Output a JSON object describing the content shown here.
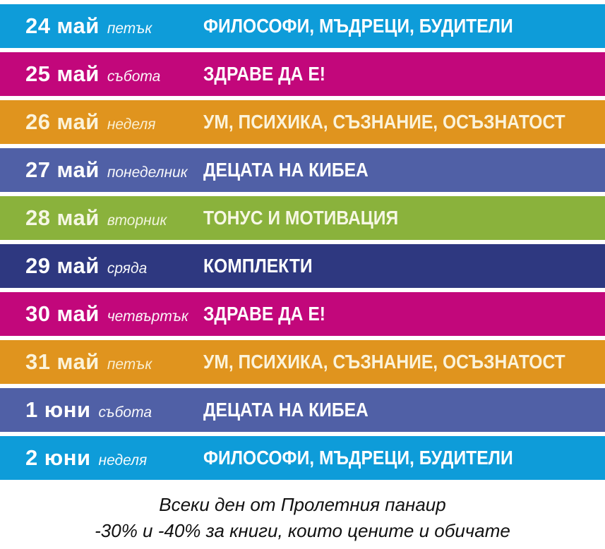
{
  "page": {
    "background_color": "#FFFFFF",
    "separator_color": "#FFFFFF"
  },
  "schedule": {
    "rows": [
      {
        "date": "24",
        "month": "май",
        "weekday": "петък",
        "topic": "ФИЛОСОФИ, МЪДРЕЦИ, БУДИТЕЛИ",
        "bg": "#0E9CD9",
        "fg": "#FFFFFF"
      },
      {
        "date": "25",
        "month": "май",
        "weekday": "събота",
        "topic": "ЗДРАВЕ ДА Е!",
        "bg": "#C2077B",
        "fg": "#FFFFFF"
      },
      {
        "date": "26",
        "month": "май",
        "weekday": "неделя",
        "topic": "УМ, ПСИХИКА, СЪЗНАНИЕ, ОСЪЗНАТОСТ",
        "bg": "#E0941E",
        "fg": "#FBF3DA"
      },
      {
        "date": "27",
        "month": "май",
        "weekday": "понеделник",
        "topic": "ДЕЦАТА НА КИБЕА",
        "bg": "#5060A6",
        "fg": "#FFFFFF"
      },
      {
        "date": "28",
        "month": "май",
        "weekday": "вторник",
        "topic": "ТОНУС И МОТИВАЦИЯ",
        "bg": "#8AB23C",
        "fg": "#F6F7E4"
      },
      {
        "date": "29",
        "month": "май",
        "weekday": "сряда",
        "topic": "КОМПЛЕКТИ",
        "bg": "#2E3880",
        "fg": "#FFFFFF"
      },
      {
        "date": "30",
        "month": "май",
        "weekday": "четвъртък",
        "topic": "ЗДРАВЕ ДА Е!",
        "bg": "#C2077B",
        "fg": "#FFFFFF"
      },
      {
        "date": "31",
        "month": "май",
        "weekday": "петък",
        "topic": "УМ, ПСИХИКА, СЪЗНАНИЕ, ОСЪЗНАТОСТ",
        "bg": "#E0941E",
        "fg": "#FBF3DA"
      },
      {
        "date": "1",
        "month": "юни",
        "weekday": "събота",
        "topic": "ДЕЦАТА НА КИБЕА",
        "bg": "#5060A6",
        "fg": "#FFFFFF"
      },
      {
        "date": "2",
        "month": "юни",
        "weekday": "неделя",
        "topic": "ФИЛОСОФИ, МЪДРЕЦИ, БУДИТЕЛИ",
        "bg": "#0E9CD9",
        "fg": "#FFFFFF"
      }
    ]
  },
  "footer": {
    "line1": "Всеки ден от Пролетния панаир",
    "line2": "-30% и -40% за книги, които цените и обичате",
    "text_color": "#111111"
  }
}
